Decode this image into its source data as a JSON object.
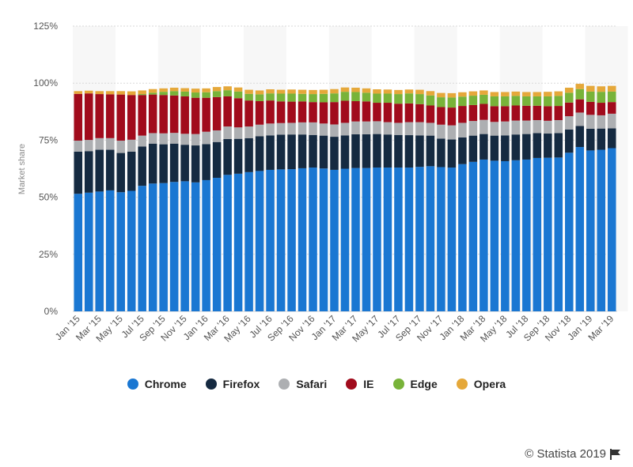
{
  "chart_data": {
    "type": "bar",
    "stacked": true,
    "ylabel": "Market share",
    "ylim": [
      0,
      125
    ],
    "y_ticks": [
      "0%",
      "25%",
      "50%",
      "75%",
      "100%",
      "125%"
    ],
    "grid": true,
    "legend_position": "bottom",
    "categories": [
      "Jan '15",
      "Feb '15",
      "Mar '15",
      "Apr '15",
      "May '15",
      "Jun '15",
      "Jul '15",
      "Aug '15",
      "Sep '15",
      "Oct '15",
      "Nov '15",
      "Dec '15",
      "Jan '16",
      "Feb '16",
      "Mar '16",
      "Apr '16",
      "May '16",
      "Jun '16",
      "Jul '16",
      "Aug '16",
      "Sep '16",
      "Oct '16",
      "Nov '16",
      "Dec '16",
      "Jan '17",
      "Feb '17",
      "Mar '17",
      "Apr '17",
      "May '17",
      "Jun '17",
      "Jul '17",
      "Aug '17",
      "Sep '17",
      "Oct '17",
      "Nov '17",
      "Dec '17",
      "Jan '18",
      "Feb '18",
      "Mar '18",
      "Apr '18",
      "May '18",
      "Jun '18",
      "Jul '18",
      "Aug '18",
      "Sep '18",
      "Oct '18",
      "Nov '18",
      "Dec '18",
      "Jan '19",
      "Feb '19",
      "Mar '19"
    ],
    "x_tick_labels": [
      "Jan '15",
      "Mar '15",
      "May '15",
      "Jul '15",
      "Sep '15",
      "Nov '15",
      "Jan '16",
      "Mar '16",
      "May '16",
      "Jul '16",
      "Sep '16",
      "Nov '16",
      "Jan '17",
      "Mar '17",
      "May '17",
      "Jul '17",
      "Sep '17",
      "Nov '17",
      "Jan '18",
      "Mar '18",
      "May '18",
      "Jul '18",
      "Sep '18",
      "Nov '18",
      "Jan '19",
      "Mar '19"
    ],
    "series": [
      {
        "name": "Chrome",
        "color": "#1a77d2",
        "values": [
          51.5,
          52,
          52.5,
          53,
          52.2,
          52.8,
          55,
          56,
          56.2,
          56.7,
          57,
          56.5,
          57.5,
          58.5,
          59.8,
          60.3,
          61,
          61.5,
          62,
          62.2,
          62.3,
          62.7,
          63,
          62.6,
          62,
          62.5,
          62.8,
          62.8,
          63,
          63,
          63,
          63,
          63.3,
          63.6,
          63.2,
          63,
          64.5,
          65.5,
          66.5,
          66,
          65.8,
          66.2,
          66.5,
          67.2,
          67.3,
          67.4,
          69.5,
          72,
          70.5,
          70.8,
          71.5
        ]
      },
      {
        "name": "Firefox",
        "color": "#152a41",
        "values": [
          18.5,
          18.2,
          18.3,
          17.8,
          17.2,
          17.2,
          17.2,
          17.5,
          17,
          16.8,
          16,
          16.2,
          15.8,
          15.7,
          15.7,
          15.3,
          14.9,
          15.2,
          15.1,
          15.2,
          15.2,
          14.8,
          14.3,
          14.4,
          14.5,
          14.6,
          14.8,
          14.8,
          14.7,
          14.5,
          14.3,
          14.2,
          13.8,
          13.4,
          12.5,
          12.3,
          11.7,
          11.5,
          11.2,
          11,
          11.3,
          11.3,
          11.2,
          10.9,
          10.6,
          10.7,
          10.2,
          9.2,
          9.5,
          9.3,
          8.7
        ]
      },
      {
        "name": "Safari",
        "color": "#adafb2",
        "values": [
          4.8,
          4.9,
          5.1,
          5.1,
          5.4,
          5.2,
          4.8,
          4.6,
          4.8,
          4.7,
          4.8,
          5,
          5.4,
          5.1,
          5.5,
          5,
          5.1,
          5.1,
          5.2,
          5.1,
          5.1,
          5.3,
          5.5,
          5.3,
          5.4,
          5.5,
          5.6,
          5.6,
          5.6,
          5.4,
          5.3,
          5.7,
          5.8,
          5.6,
          6.1,
          6.2,
          6.4,
          6.4,
          6.2,
          6,
          6.1,
          6.1,
          5.9,
          5.7,
          5.6,
          5.7,
          5.8,
          5.9,
          6.1,
          5.8,
          6.4
        ]
      },
      {
        "name": "IE",
        "color": "#a10b1c",
        "values": [
          20.5,
          20.4,
          19.3,
          19.2,
          20.2,
          19.6,
          17.8,
          16.9,
          16.8,
          16.4,
          16.4,
          15.9,
          14.9,
          14.6,
          13.2,
          12.8,
          11.4,
          10.3,
          10.1,
          9.5,
          9.3,
          9.2,
          8.9,
          9.3,
          9.8,
          9.7,
          8.9,
          8.8,
          8.1,
          8.5,
          8.4,
          8.2,
          7.9,
          7.6,
          7.7,
          7.8,
          7.4,
          7,
          7,
          6.9,
          6.7,
          6.6,
          6.5,
          6.3,
          6.4,
          6.2,
          6,
          5.8,
          5.7,
          5.5,
          5.1
        ]
      },
      {
        "name": "Edge",
        "color": "#78b339",
        "values": [
          0,
          0,
          0,
          0,
          0,
          0,
          0.4,
          0.8,
          1.4,
          1.9,
          2.1,
          2.3,
          2.4,
          2.6,
          2.7,
          2.9,
          2.9,
          3,
          3.1,
          3.4,
          3.5,
          3.3,
          3.5,
          3.7,
          3.8,
          3.9,
          4,
          3.8,
          4,
          4,
          4.2,
          4.4,
          4.4,
          4.4,
          4.3,
          4.4,
          4.1,
          4.1,
          4,
          4.3,
          4.3,
          4.2,
          4.1,
          4.1,
          4.3,
          4.4,
          4.3,
          4.5,
          4.5,
          4.8,
          4.6
        ]
      },
      {
        "name": "Opera",
        "color": "#e5a83a",
        "values": [
          1.2,
          1.2,
          1.3,
          1.4,
          1.5,
          1.6,
          1.6,
          1.6,
          1.5,
          1.5,
          1.5,
          1.7,
          1.7,
          1.8,
          1.7,
          1.8,
          1.8,
          1.7,
          1.8,
          1.7,
          1.8,
          1.8,
          1.8,
          1.8,
          1.9,
          1.9,
          1.9,
          1.9,
          1.9,
          1.8,
          1.8,
          1.7,
          1.9,
          1.9,
          1.9,
          1.9,
          1.9,
          1.9,
          1.9,
          1.9,
          1.9,
          1.9,
          1.9,
          1.9,
          2,
          2,
          2.2,
          2.3,
          2.5,
          2.4,
          2.5
        ]
      }
    ]
  },
  "credit": {
    "text": "© Statista 2019",
    "icon": "flag-icon"
  }
}
